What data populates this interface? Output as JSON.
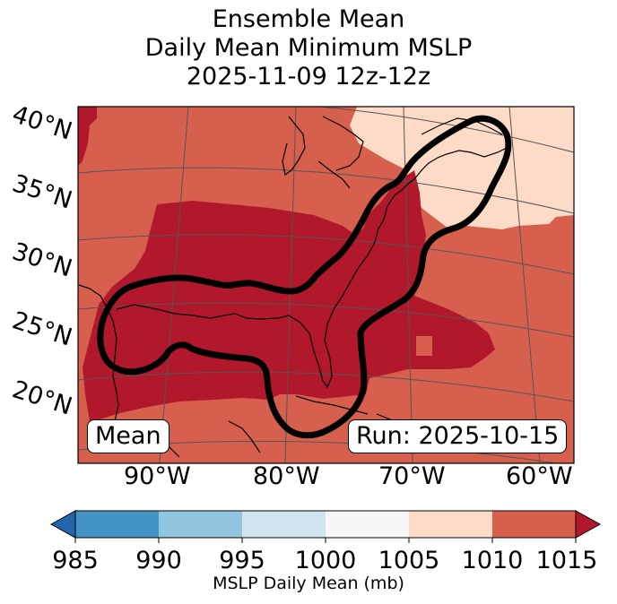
{
  "title": {
    "line1": "Ensemble Mean",
    "line2": "Daily Mean Minimum MSLP",
    "line3": "2025-11-09 12z-12z"
  },
  "map": {
    "lat_labels": [
      "40°N",
      "35°N",
      "30°N",
      "25°N",
      "20°N"
    ],
    "lon_labels": [
      "90°W",
      "80°W",
      "70°W",
      "60°W"
    ],
    "inset_left": "Mean",
    "inset_right": "Run: 2025-10-15",
    "colors": {
      "c1010_1015": "#d6604d",
      "c1005_1010": "#fddbc7",
      "c_below_1010": "#b2182b",
      "contour": "#000000",
      "coast": "#000000",
      "grid": "#555555"
    }
  },
  "colorbar": {
    "label": "MSLP Daily Mean (mb)",
    "ticks": [
      "985",
      "990",
      "995",
      "1000",
      "1005",
      "1010",
      "1015"
    ],
    "colors": [
      "#4393c3",
      "#92c5de",
      "#d1e5f0",
      "#f7f7f7",
      "#fddbc7",
      "#d6604d"
    ],
    "under_color": "#2166ac",
    "over_color": "#b2182b"
  }
}
